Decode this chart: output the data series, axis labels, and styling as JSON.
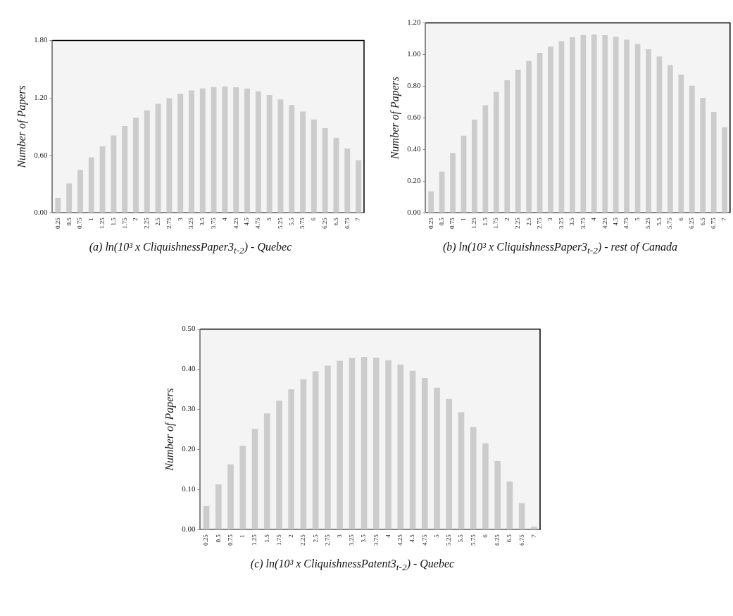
{
  "chart_data": [
    {
      "type": "bar",
      "title": "(a) ln(10³ x CliquishnessPaper3$_{t-2}$) - Quebec",
      "ylabel": "Number of Papers",
      "categories": [
        "0.25",
        "0.5",
        "0.75",
        "1",
        "1.25",
        "1.5",
        "1.75",
        "2",
        "2.25",
        "2.5",
        "2.75",
        "3",
        "3.25",
        "3.5",
        "3.75",
        "4",
        "4.25",
        "4.5",
        "4.75",
        "5",
        "5.25",
        "5.5",
        "5.75",
        "6",
        "6.25",
        "6.5",
        "6.75",
        "7"
      ],
      "color": "#cccccc",
      "values": [
        0.156,
        0.308,
        0.448,
        0.58,
        0.696,
        0.807,
        0.907,
        0.994,
        1.071,
        1.138,
        1.197,
        1.243,
        1.278,
        1.3,
        1.316,
        1.32,
        1.312,
        1.298,
        1.27,
        1.231,
        1.185,
        1.126,
        1.057,
        0.974,
        0.884,
        0.783,
        0.671,
        0.55
      ],
      "ylim": [
        0,
        1.8
      ],
      "yticks": [
        {
          "value": 0,
          "label": "0.00"
        },
        {
          "value": 0.6,
          "label": "0.60"
        },
        {
          "value": 1.2,
          "label": "1.20"
        },
        {
          "value": 1.8,
          "label": "1.80"
        }
      ]
    },
    {
      "type": "bar",
      "title": "(b) ln(10³ x CliquishnessPaper3$_{t-2}$) - rest of Canada",
      "ylabel": "Number of Papers",
      "categories": [
        "0.25",
        "0.5",
        "0.75",
        "1",
        "1.25",
        "1.5",
        "1.75",
        "2",
        "2.25",
        "2.5",
        "2.75",
        "3",
        "3.25",
        "3.5",
        "3.75",
        "4",
        "4.25",
        "4.5",
        "4.75",
        "5",
        "5.25",
        "5.5",
        "5.75",
        "6",
        "6.25",
        "6.5",
        "6.75",
        "7"
      ],
      "color": "#cccccc",
      "values": [
        0.135,
        0.26,
        0.378,
        0.487,
        0.588,
        0.68,
        0.764,
        0.838,
        0.904,
        0.96,
        1.011,
        1.05,
        1.085,
        1.11,
        1.124,
        1.127,
        1.123,
        1.113,
        1.094,
        1.067,
        1.034,
        0.988,
        0.935,
        0.873,
        0.803,
        0.726,
        0.637,
        0.541
      ],
      "ylim": [
        0,
        1.2
      ],
      "yticks": [
        {
          "value": 0,
          "label": "0.00"
        },
        {
          "value": 0.2,
          "label": "0.20"
        },
        {
          "value": 0.4,
          "label": "0.40"
        },
        {
          "value": 0.6,
          "label": "0.60"
        },
        {
          "value": 0.8,
          "label": "0.80"
        },
        {
          "value": 1,
          "label": "1.00"
        },
        {
          "value": 1.2,
          "label": "1.20"
        }
      ]
    },
    {
      "type": "bar",
      "title": "(c) ln(10³ x CliquishnessPatent3$_{t-2}$) - Quebec",
      "ylabel": "Number of Papers",
      "categories": [
        "0.25",
        "0.5",
        "0.75",
        "1",
        "1.25",
        "1.5",
        "1.75",
        "2",
        "2.25",
        "2.5",
        "2.75",
        "3",
        "3.25",
        "3.5",
        "3.75",
        "4",
        "4.25",
        "4.5",
        "4.75",
        "5",
        "5.25",
        "5.5",
        "5.75",
        "6",
        "6.25",
        "6.5",
        "6.75",
        "7"
      ],
      "color": "#cccccc",
      "values": [
        0.059,
        0.113,
        0.163,
        0.209,
        0.251,
        0.29,
        0.322,
        0.35,
        0.375,
        0.395,
        0.409,
        0.421,
        0.428,
        0.431,
        0.429,
        0.423,
        0.412,
        0.396,
        0.378,
        0.354,
        0.326,
        0.293,
        0.256,
        0.215,
        0.171,
        0.12,
        0.066,
        0.007
      ],
      "ylim": [
        0,
        0.5
      ],
      "yticks": [
        {
          "value": 0,
          "label": "0.00"
        },
        {
          "value": 0.1,
          "label": "0.10"
        },
        {
          "value": 0.2,
          "label": "0.20"
        },
        {
          "value": 0.3,
          "label": "0.30"
        },
        {
          "value": 0.4,
          "label": "0.40"
        },
        {
          "value": 0.5,
          "label": "0.50"
        }
      ]
    }
  ]
}
